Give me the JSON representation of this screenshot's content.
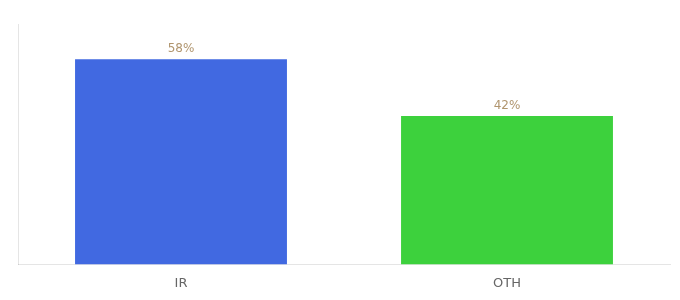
{
  "chart_data": {
    "type": "bar",
    "categories": [
      "IR",
      "OTH"
    ],
    "values": [
      58,
      42
    ],
    "value_labels": [
      "58%",
      "42%"
    ],
    "colors": [
      "#4169e1",
      "#3dd13d"
    ],
    "ylim": [
      0,
      68
    ],
    "data_labels": true,
    "tick_labels": "x",
    "grid": false
  }
}
